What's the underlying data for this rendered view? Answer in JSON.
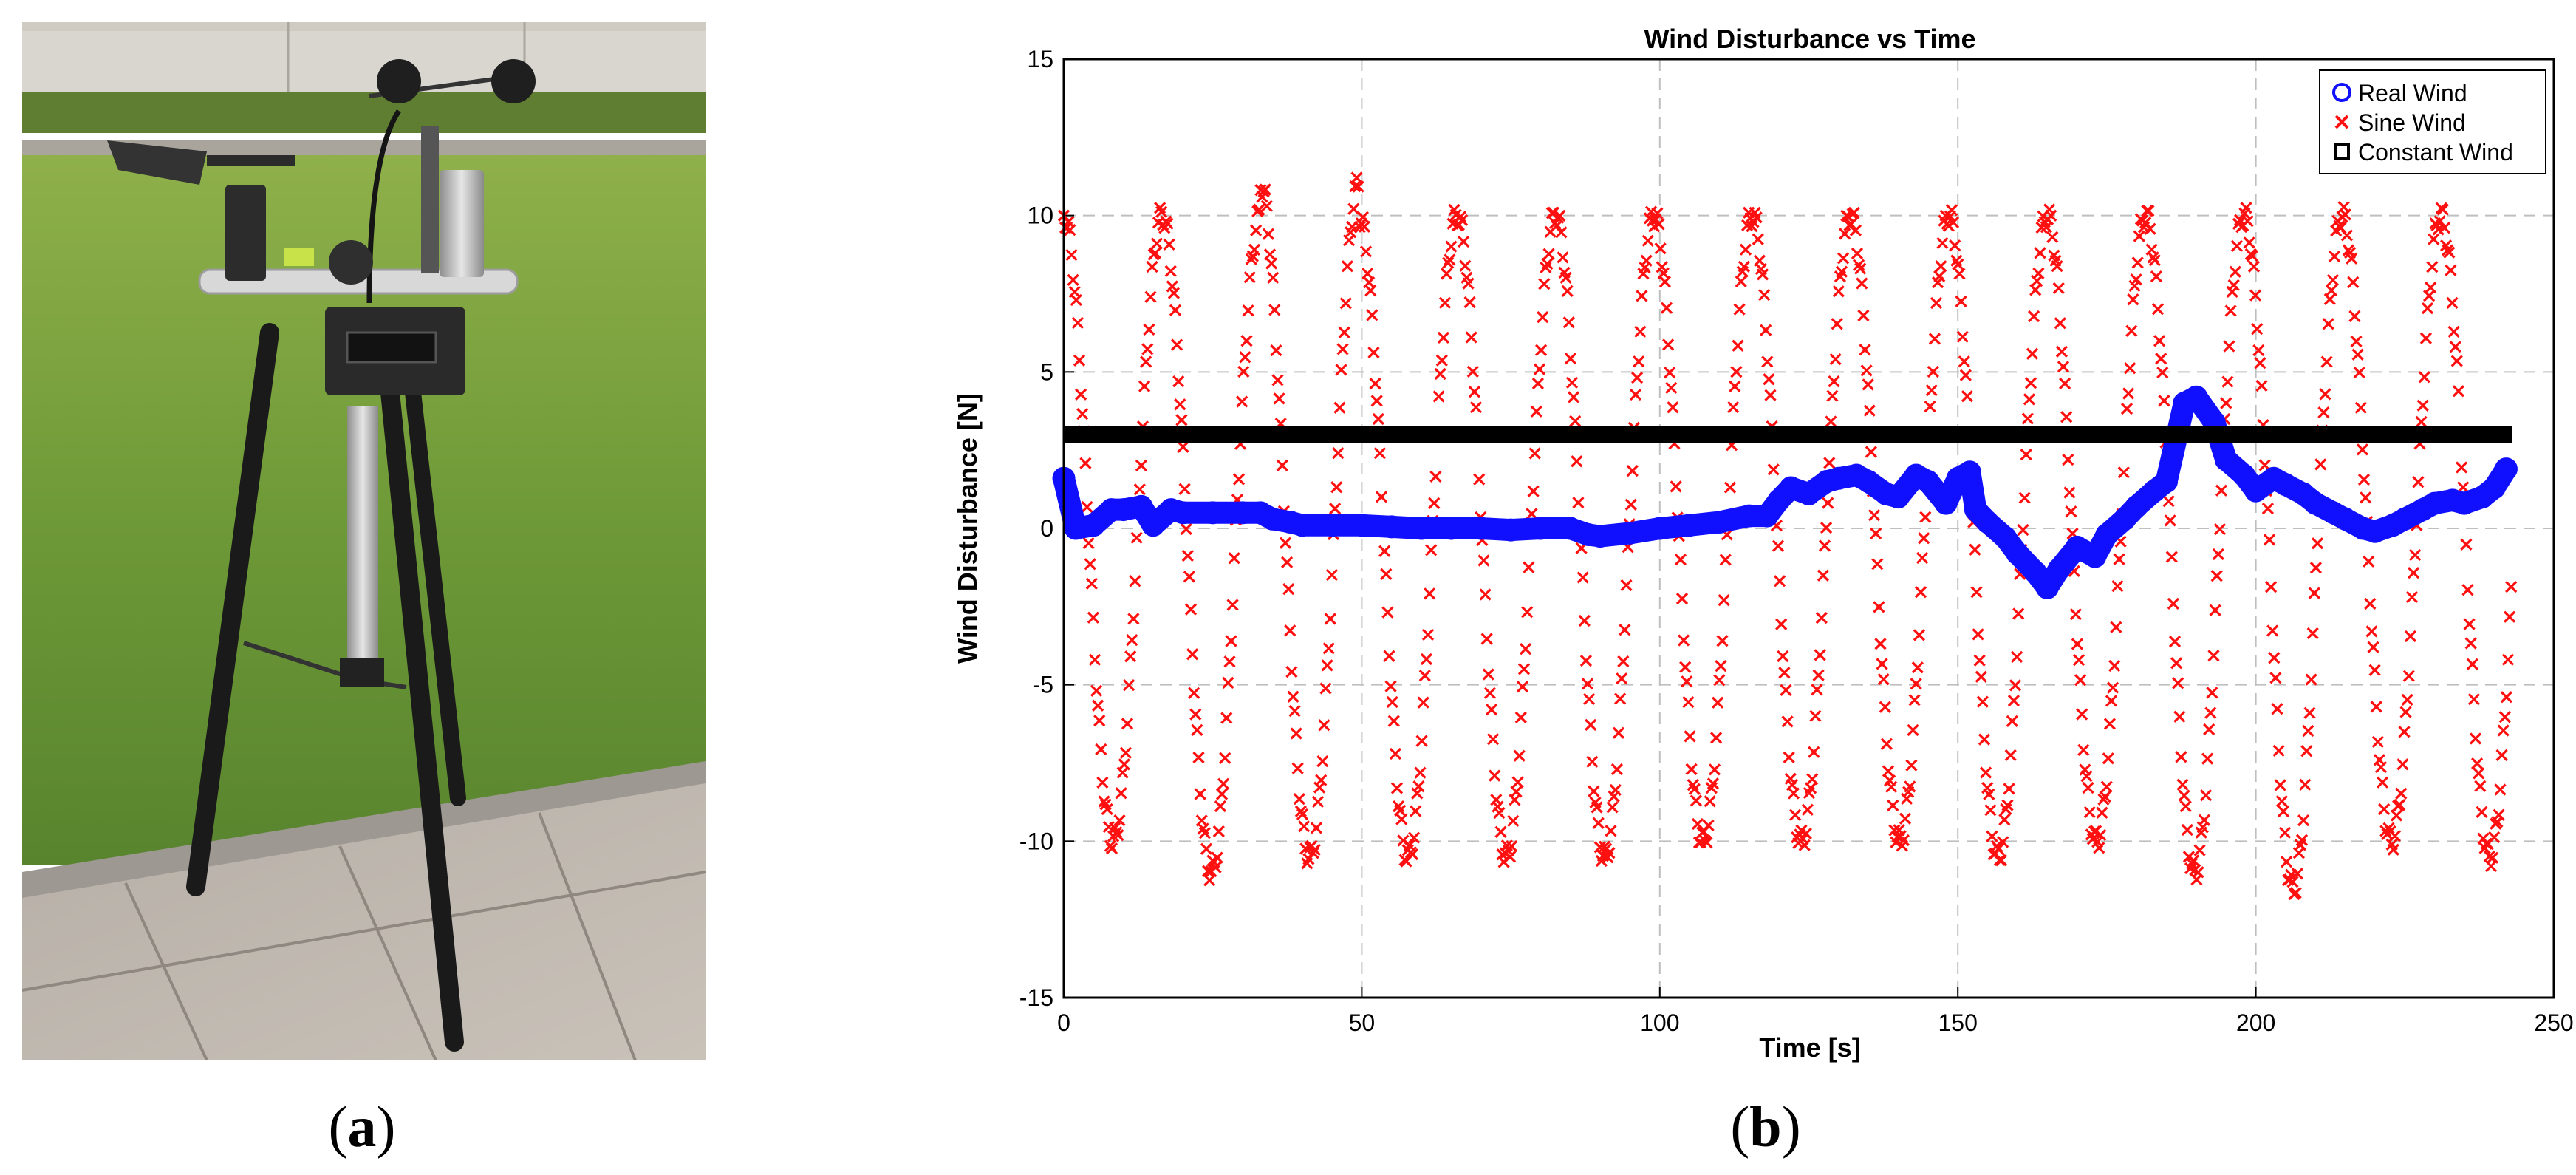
{
  "figure": {
    "panel_a_caption_letter": "a",
    "panel_b_caption_letter": "b"
  },
  "colors": {
    "real_wind": "#1010ff",
    "sine_wind": "#ff1010",
    "constant_wind": "#000000",
    "grid": "#bfbfbf"
  },
  "chart_data": {
    "type": "line",
    "title": "Wind Disturbance vs Time",
    "xlabel": "Time [s]",
    "ylabel": "Wind Disturbance [N]",
    "xlim": [
      0,
      250
    ],
    "ylim": [
      -15,
      15
    ],
    "xticks": [
      0,
      50,
      100,
      150,
      200,
      250
    ],
    "yticks": [
      -15,
      -10,
      -5,
      0,
      5,
      10,
      15
    ],
    "grid": true,
    "legend_position": "top-right",
    "legend": [
      "Real Wind",
      "Sine Wind",
      "Constant Wind"
    ],
    "series": [
      {
        "name": "Real Wind",
        "marker": "circle",
        "x": [
          0,
          2,
          5,
          8,
          10,
          13,
          15,
          18,
          20,
          25,
          30,
          33,
          35,
          38,
          40,
          45,
          50,
          55,
          60,
          65,
          70,
          75,
          80,
          85,
          88,
          90,
          95,
          100,
          105,
          110,
          115,
          118,
          120,
          122,
          125,
          128,
          130,
          133,
          135,
          138,
          140,
          143,
          145,
          148,
          150,
          152,
          153,
          155,
          158,
          160,
          163,
          165,
          167,
          170,
          173,
          175,
          178,
          180,
          183,
          185,
          188,
          190,
          193,
          195,
          198,
          200,
          203,
          205,
          208,
          210,
          213,
          215,
          218,
          220,
          223,
          225,
          228,
          230,
          233,
          235,
          238,
          240,
          242
        ],
        "values": [
          1.6,
          0.0,
          0.1,
          0.6,
          0.6,
          0.7,
          0.1,
          0.6,
          0.5,
          0.5,
          0.5,
          0.5,
          0.3,
          0.2,
          0.1,
          0.1,
          0.1,
          0.05,
          0.0,
          0.0,
          0.0,
          -0.05,
          0.0,
          0.0,
          -0.2,
          -0.25,
          -0.15,
          0.0,
          0.1,
          0.2,
          0.4,
          0.4,
          0.9,
          1.3,
          1.1,
          1.5,
          1.6,
          1.7,
          1.5,
          1.1,
          1.0,
          1.7,
          1.5,
          0.8,
          1.6,
          1.8,
          0.6,
          0.2,
          -0.3,
          -0.8,
          -1.4,
          -1.9,
          -1.3,
          -0.6,
          -0.9,
          -0.2,
          0.3,
          0.7,
          1.2,
          1.5,
          4.0,
          4.2,
          3.4,
          2.2,
          1.7,
          1.2,
          1.6,
          1.4,
          1.1,
          0.8,
          0.5,
          0.3,
          0.0,
          -0.1,
          0.1,
          0.3,
          0.6,
          0.8,
          0.9,
          0.8,
          1.0,
          1.3,
          1.9
        ]
      },
      {
        "name": "Sine Wind",
        "marker": "x",
        "amplitude": 10,
        "period_s": 16.5,
        "x_start": 0,
        "x_end": 243,
        "peaks": [
          10,
          10,
          11,
          10,
          10,
          10,
          10,
          10,
          10,
          10,
          10,
          10,
          10,
          10,
          10
        ],
        "troughs": [
          -10,
          -11,
          -10.5,
          -10.5,
          -10.5,
          -10.5,
          -10,
          -10,
          -10,
          -10.5,
          -10,
          -11,
          -11.5,
          -10,
          -10.5
        ]
      },
      {
        "name": "Constant Wind",
        "marker": "square",
        "x": [
          0,
          243
        ],
        "values": [
          3,
          3
        ]
      }
    ]
  }
}
